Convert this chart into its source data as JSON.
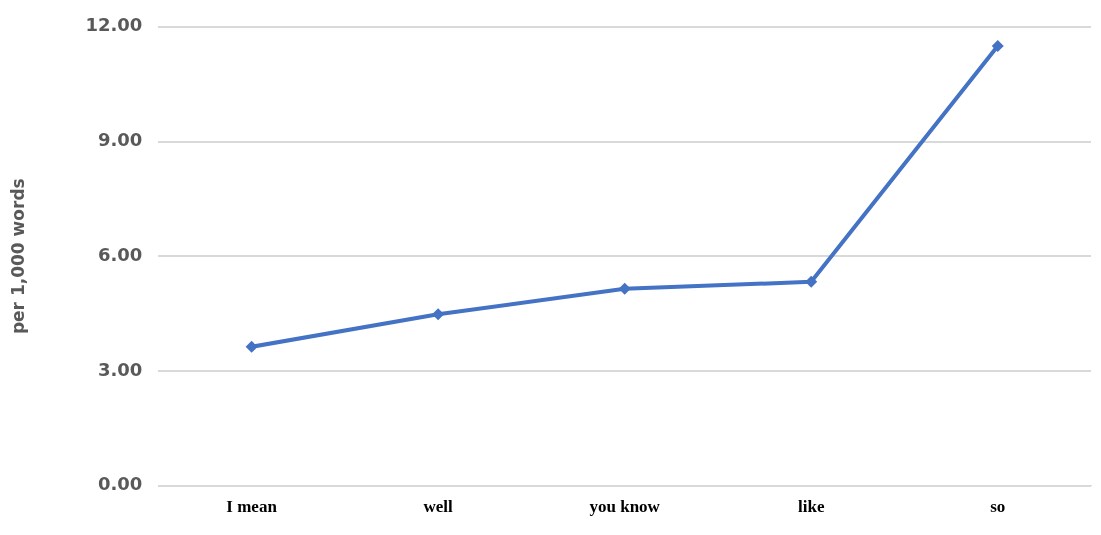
{
  "chart_data": {
    "type": "line",
    "ylabel": "per 1,000 words",
    "categories": [
      "I mean",
      "well",
      "you know",
      "like",
      "so"
    ],
    "series": [
      {
        "color": "#4472c4",
        "values": [
          3.63,
          4.48,
          5.15,
          5.33,
          11.5
        ]
      }
    ],
    "ylim": [
      0,
      12
    ],
    "yticks": [
      {
        "value": 0,
        "label": "0.00"
      },
      {
        "value": 3,
        "label": "3.00"
      },
      {
        "value": 6,
        "label": "6.00"
      },
      {
        "value": 9,
        "label": "9.00"
      },
      {
        "value": 12,
        "label": "12.00"
      }
    ],
    "grid": "y",
    "marker": "diamond",
    "line_style": "solid",
    "legend": false
  }
}
